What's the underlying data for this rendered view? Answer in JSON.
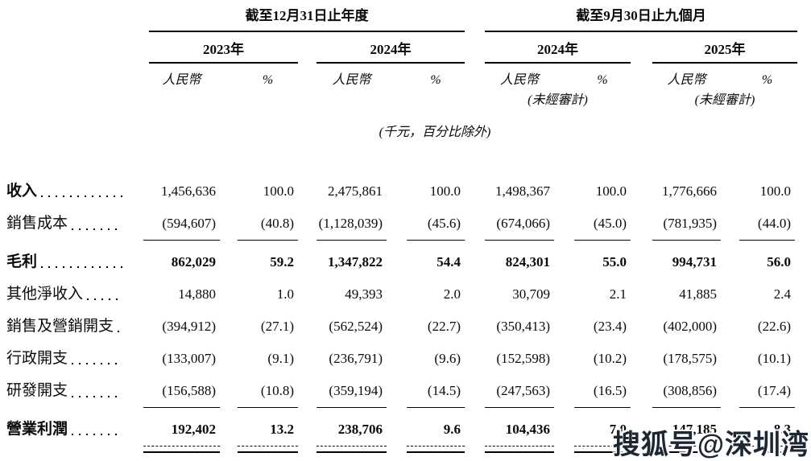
{
  "table": {
    "groups": [
      {
        "title": "截至12月31日止年度",
        "years": [
          "2023年",
          "2024年"
        ]
      },
      {
        "title": "截至9月30日止九個月",
        "years": [
          "2024年",
          "2025年"
        ]
      }
    ],
    "currency_header": "人民幣",
    "percent_header": "%",
    "unaudited_note": "(未經審計)",
    "units_note": "(千元，百分比除外)",
    "rows": [
      {
        "label": "收入",
        "values": [
          "1,456,636",
          "100.0",
          "2,475,861",
          "100.0",
          "1,498,367",
          "100.0",
          "1,776,666",
          "100.0"
        ]
      },
      {
        "label": "銷售成本",
        "values": [
          "(594,607)",
          "(40.8)",
          "(1,128,039)",
          "(45.6)",
          "(674,066)",
          "(45.0)",
          "(781,935)",
          "(44.0)"
        ]
      },
      {
        "label": "毛利",
        "values": [
          "862,029",
          "59.2",
          "1,347,822",
          "54.4",
          "824,301",
          "55.0",
          "994,731",
          "56.0"
        ]
      },
      {
        "label": "其他淨收入",
        "values": [
          "14,880",
          "1.0",
          "49,393",
          "2.0",
          "30,709",
          "2.1",
          "41,885",
          "2.4"
        ]
      },
      {
        "label": "銷售及營銷開支",
        "values": [
          "(394,912)",
          "(27.1)",
          "(562,524)",
          "(22.7)",
          "(350,413)",
          "(23.4)",
          "(402,000)",
          "(22.6)"
        ]
      },
      {
        "label": "行政開支",
        "values": [
          "(133,007)",
          "(9.1)",
          "(236,791)",
          "(9.6)",
          "(152,598)",
          "(10.2)",
          "(178,575)",
          "(10.1)"
        ]
      },
      {
        "label": "研發開支",
        "values": [
          "(156,588)",
          "(10.8)",
          "(359,194)",
          "(14.5)",
          "(247,563)",
          "(16.5)",
          "(308,856)",
          "(17.4)"
        ]
      },
      {
        "label": "營業利潤",
        "values": [
          "192,402",
          "13.2",
          "238,706",
          "9.6",
          "104,436",
          "7.0",
          "147,185",
          "8.3"
        ]
      }
    ]
  },
  "watermark": {
    "text": "搜狐号@深圳湾",
    "color": "#1d2633"
  },
  "colors": {
    "text": "#000000",
    "background": "#ffffff"
  }
}
